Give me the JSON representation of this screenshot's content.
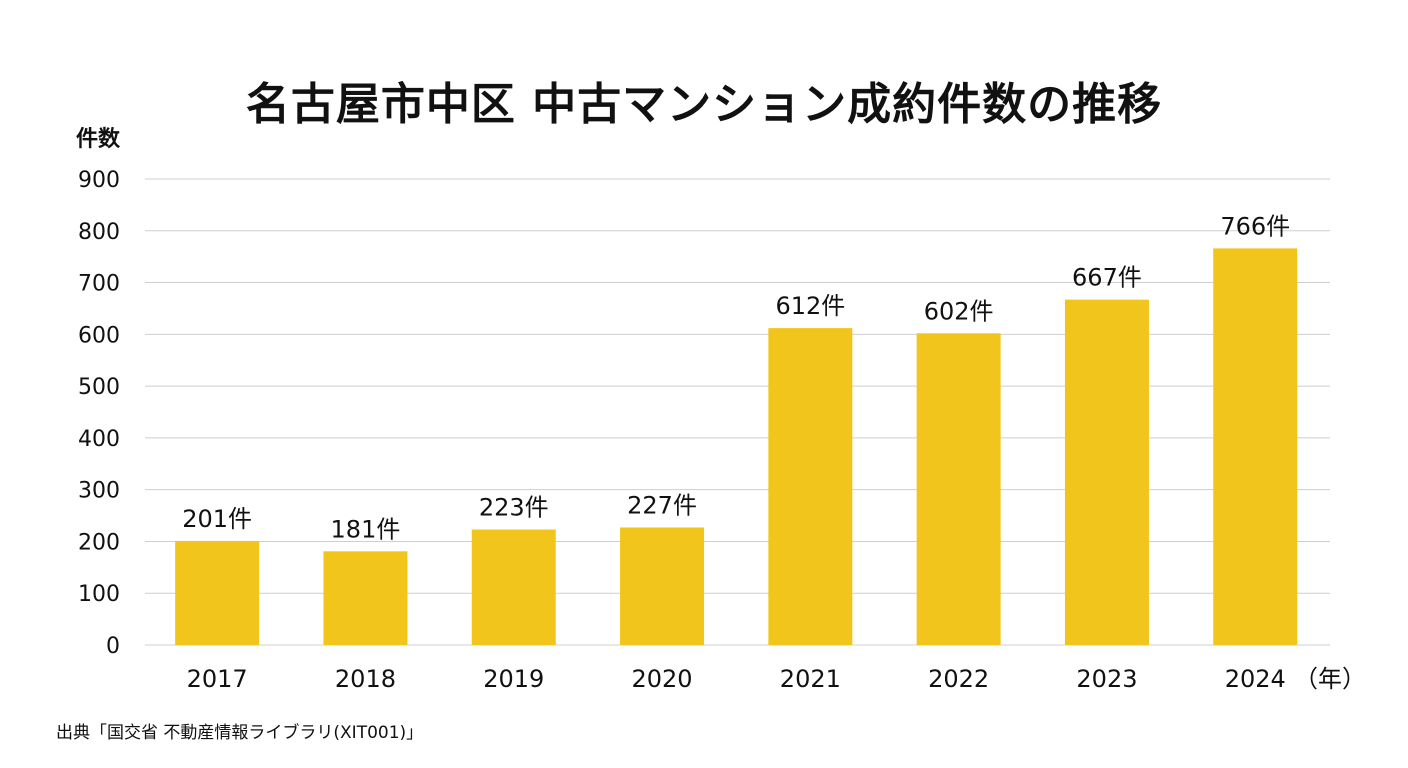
{
  "chart_data": {
    "type": "bar",
    "title": "名古屋市中区 中古マンション成約件数の推移",
    "ylabel": "件数",
    "xlabel": "（年）",
    "categories": [
      "2017",
      "2018",
      "2019",
      "2020",
      "2021",
      "2022",
      "2023",
      "2024"
    ],
    "values": [
      201,
      181,
      223,
      227,
      612,
      602,
      667,
      766
    ],
    "value_labels": [
      "201件",
      "181件",
      "223件",
      "227件",
      "612件",
      "602件",
      "667件",
      "766件"
    ],
    "y_ticks": [
      "0",
      "100",
      "200",
      "300",
      "400",
      "500",
      "600",
      "700",
      "800",
      "900"
    ],
    "ylim": [
      0,
      900
    ],
    "grid": true,
    "legend": "none",
    "bar_color": "#F2C51D",
    "grid_color": "#CFCFCF"
  },
  "source": "出典「国交省 不動産情報ライブラリ(XIT001)」"
}
